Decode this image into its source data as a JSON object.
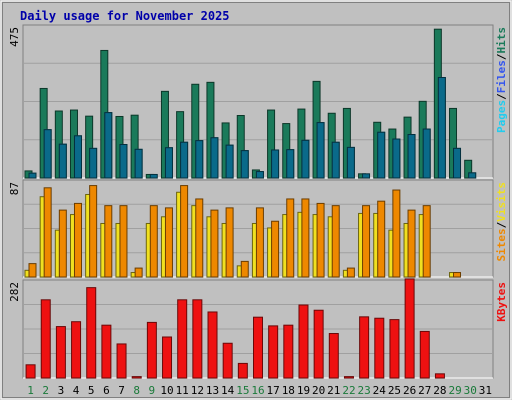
{
  "chart_data": {
    "type": "bar",
    "title": "Daily usage for November 2025",
    "colors": {
      "hits": "#1a7a5a",
      "files": "#22ccee",
      "pages": "#0a6a8a",
      "visits": "#f0e020",
      "sites": "#ee8800",
      "kbytes": "#ee1111",
      "plot_bg": "#c0c0c0",
      "title": "#0000aa",
      "weekend": "#1a7a3a"
    },
    "categories": [
      "1",
      "2",
      "3",
      "4",
      "5",
      "6",
      "7",
      "8",
      "9",
      "10",
      "11",
      "12",
      "13",
      "14",
      "15",
      "16",
      "17",
      "18",
      "19",
      "20",
      "21",
      "22",
      "23",
      "24",
      "25",
      "26",
      "27",
      "28",
      "29",
      "30",
      "31"
    ],
    "weekend_days": [
      "1",
      "2",
      "8",
      "9",
      "15",
      "16",
      "22",
      "23",
      "29",
      "30"
    ],
    "panels": [
      {
        "ymax_label": "475",
        "ymax": 475,
        "ylabel_parts": [
          {
            "text": "Pages",
            "color": "#22ccee"
          },
          {
            "text": "/",
            "color": "#000000"
          },
          {
            "text": "Files",
            "color": "#3355ee"
          },
          {
            "text": "/",
            "color": "#000000"
          },
          {
            "text": "Hits",
            "color": "#1a7a5a"
          }
        ],
        "series": [
          {
            "name": "Hits",
            "color": "#1a7a5a",
            "values": [
              22,
              278,
              208,
              211,
              192,
              396,
              191,
              195,
              11,
              269,
              206,
              291,
              297,
              171,
              194,
              25,
              211,
              169,
              214,
              300,
              201,
              216,
              13,
              173,
              152,
              189,
              238,
              462,
              216,
              55,
              null
            ]
          },
          {
            "name": "Files",
            "color": "#22ccee",
            "values": [
              15,
              150,
              105,
              131,
              92,
              203,
              104,
              89,
              null,
              94,
              111,
              116,
              125,
              102,
              85,
              20,
              87,
              88,
              117,
              172,
              111,
              95,
              null,
              142,
              121,
              135,
              152,
              312,
              92,
              16,
              null
            ]
          },
          {
            "name": "Pages",
            "color": "#0a6a8a",
            "values": [
              15,
              150,
              105,
              131,
              92,
              203,
              104,
              89,
              11,
              94,
              111,
              116,
              125,
              102,
              85,
              20,
              87,
              88,
              117,
              172,
              111,
              95,
              13,
              142,
              121,
              135,
              152,
              312,
              92,
              16,
              null
            ]
          }
        ]
      },
      {
        "ymax_label": "87",
        "ymax": 87,
        "ylabel_parts": [
          {
            "text": "Sites",
            "color": "#ee8800"
          },
          {
            "text": "/",
            "color": "#000000"
          },
          {
            "text": "Visits",
            "color": "#f0e020"
          }
        ],
        "series": [
          {
            "name": "Visits",
            "color": "#f0e020",
            "values": [
              6,
              72,
              42,
              56,
              74,
              48,
              48,
              4,
              48,
              54,
              76,
              64,
              54,
              48,
              10,
              48,
              44,
              56,
              58,
              56,
              54,
              6,
              57,
              57,
              42,
              48,
              56,
              null,
              4,
              null,
              null
            ]
          },
          {
            "name": "Sites",
            "color": "#ee8800",
            "values": [
              12,
              80,
              60,
              66,
              82,
              64,
              64,
              8,
              64,
              62,
              82,
              70,
              60,
              62,
              14,
              62,
              50,
              70,
              70,
              66,
              64,
              8,
              64,
              68,
              78,
              60,
              64,
              null,
              4,
              null,
              null
            ]
          }
        ]
      },
      {
        "ymax_label": "282",
        "ymax": 282,
        "ylabel_parts": [
          {
            "text": "KBytes",
            "color": "#ee1111"
          }
        ],
        "series": [
          {
            "name": "KBytes",
            "color": "#ee1111",
            "values": [
              38,
              225,
              148,
              162,
              260,
              152,
              98,
              4,
              160,
              118,
              225,
              225,
              190,
              100,
              42,
              175,
              150,
              152,
              210,
              195,
              128,
              4,
              176,
              172,
              168,
              285,
              134,
              12,
              null,
              null,
              null
            ]
          }
        ]
      }
    ]
  }
}
